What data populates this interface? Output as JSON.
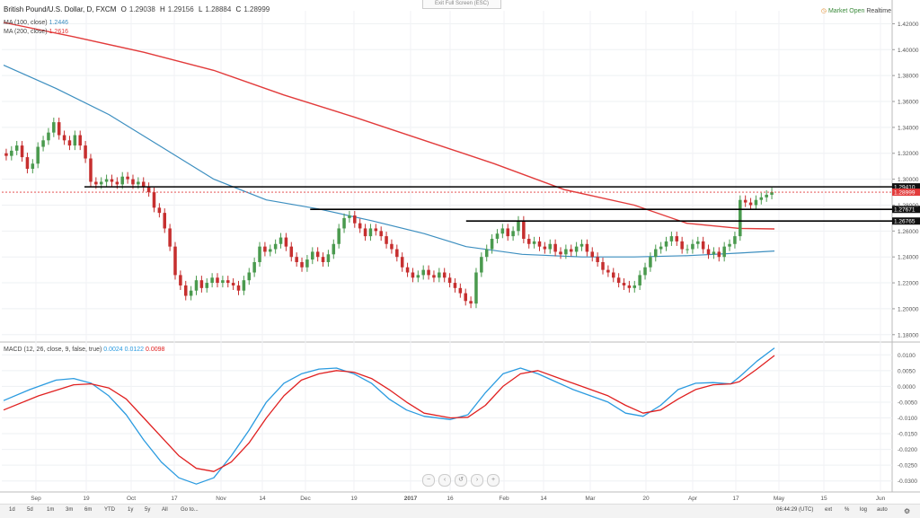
{
  "header": {
    "symbol": "British Pound/U.S. Dollar, D, FXCM",
    "ohlc": [
      {
        "k": "O",
        "v": "1.29038"
      },
      {
        "k": "H",
        "v": "1.29156"
      },
      {
        "k": "L",
        "v": "1.28884"
      },
      {
        "k": "C",
        "v": "1.28999"
      }
    ],
    "ma100_label": "MA (100, close)",
    "ma100_value": "1.2446",
    "ma200_label": "MA (200, close)",
    "ma200_value": "1.2616",
    "exit_fullscreen": "Exit Full Screen (ESC)",
    "market_status": "Market Open",
    "realtime": "Realtime"
  },
  "macd_header": {
    "label": "MACD (12, 26, close, 9, false, true)",
    "v1": "0.0024",
    "v2": "0.0122",
    "v3": "0.0098"
  },
  "colors": {
    "up": "#4a9a4e",
    "down": "#c62f2f",
    "ma100": "#3d8fc0",
    "ma200": "#e23b3b",
    "macd": "#2b9be0",
    "signal": "#e02020"
  },
  "toolbar": {
    "timeframes": [
      "1d",
      "5d",
      "1m",
      "3m",
      "6m",
      "YTD",
      "1y",
      "5y",
      "All",
      "Go to..."
    ],
    "clock": "06:44:29 (UTC)",
    "right": [
      "ext",
      "%",
      "log",
      "auto"
    ]
  },
  "chart_data": [
    {
      "type": "candlestick",
      "title": "British Pound/U.S. Dollar, D, FXCM",
      "ylim": [
        1.175,
        1.43
      ],
      "y_ticks": [
        "1.42000",
        "1.40000",
        "1.38000",
        "1.36000",
        "1.34000",
        "1.32000",
        "1.30000",
        "1.28000",
        "1.26000",
        "1.24000",
        "1.22000",
        "1.20000",
        "1.18000"
      ],
      "x_ticks": [
        "Sep",
        "19",
        "Oct",
        "17",
        "Nov",
        "14",
        "Dec",
        "19",
        "2017",
        "16",
        "Feb",
        "14",
        "Mar",
        "20",
        "Apr",
        "17",
        "May",
        "15",
        "Jun"
      ],
      "candles_close": [
        1.318,
        1.322,
        1.326,
        1.317,
        1.308,
        1.312,
        1.325,
        1.33,
        1.336,
        1.344,
        1.334,
        1.33,
        1.326,
        1.334,
        1.326,
        1.316,
        1.298,
        1.296,
        1.298,
        1.3,
        1.298,
        1.296,
        1.302,
        1.3,
        1.296,
        1.298,
        1.294,
        1.29,
        1.278,
        1.274,
        1.262,
        1.248,
        1.226,
        1.218,
        1.21,
        1.214,
        1.222,
        1.216,
        1.22,
        1.224,
        1.22,
        1.222,
        1.22,
        1.218,
        1.214,
        1.222,
        1.228,
        1.236,
        1.248,
        1.244,
        1.246,
        1.25,
        1.255,
        1.248,
        1.24,
        1.236,
        1.232,
        1.238,
        1.244,
        1.24,
        1.236,
        1.242,
        1.25,
        1.262,
        1.27,
        1.272,
        1.266,
        1.262,
        1.256,
        1.262,
        1.26,
        1.256,
        1.25,
        1.246,
        1.24,
        1.232,
        1.228,
        1.224,
        1.226,
        1.23,
        1.226,
        1.224,
        1.228,
        1.224,
        1.22,
        1.216,
        1.212,
        1.206,
        1.204,
        1.228,
        1.24,
        1.246,
        1.254,
        1.258,
        1.262,
        1.256,
        1.26,
        1.268,
        1.254,
        1.25,
        1.252,
        1.248,
        1.246,
        1.25,
        1.244,
        1.242,
        1.246,
        1.244,
        1.248,
        1.25,
        1.244,
        1.24,
        1.236,
        1.23,
        1.228,
        1.224,
        1.22,
        1.218,
        1.216,
        1.218,
        1.226,
        1.232,
        1.24,
        1.246,
        1.248,
        1.252,
        1.256,
        1.252,
        1.246,
        1.246,
        1.25,
        1.252,
        1.246,
        1.242,
        1.244,
        1.24,
        1.248,
        1.25,
        1.256,
        1.284,
        1.282,
        1.28,
        1.284,
        1.286,
        1.288,
        1.29
      ],
      "ma100": {
        "name": "MA (100, close)",
        "value": "1.2446",
        "points": [
          [
            0,
            1.388
          ],
          [
            30,
            1.37
          ],
          [
            60,
            1.35
          ],
          [
            90,
            1.325
          ],
          [
            120,
            1.3
          ],
          [
            150,
            1.284
          ],
          [
            180,
            1.277
          ],
          [
            210,
            1.268
          ],
          [
            240,
            1.258
          ],
          [
            264,
            1.248
          ],
          [
            296,
            1.242
          ],
          [
            330,
            1.24
          ],
          [
            360,
            1.24
          ],
          [
            390,
            1.241
          ],
          [
            420,
            1.243
          ],
          [
            440,
            1.2446
          ]
        ]
      },
      "ma200": {
        "name": "MA (200, close)",
        "value": "1.2616",
        "points": [
          [
            0,
            1.421
          ],
          [
            40,
            1.41
          ],
          [
            80,
            1.398
          ],
          [
            120,
            1.384
          ],
          [
            160,
            1.365
          ],
          [
            200,
            1.348
          ],
          [
            240,
            1.33
          ],
          [
            280,
            1.312
          ],
          [
            320,
            1.292
          ],
          [
            360,
            1.28
          ],
          [
            390,
            1.266
          ],
          [
            420,
            1.262
          ],
          [
            440,
            1.2616
          ]
        ]
      },
      "price_lines": [
        {
          "label": "1.29410",
          "value": 1.2941,
          "from": 48
        },
        {
          "label": "1.27671",
          "value": 1.2767,
          "from": 175
        },
        {
          "label": "1.26765",
          "value": 1.2677,
          "from": 264
        }
      ],
      "current_price": {
        "label": "1.28999",
        "value": 1.28999
      }
    },
    {
      "type": "line",
      "title": "MACD (12, 26, close, 9, false, true)",
      "ylim": [
        -0.0335,
        0.0135
      ],
      "y_ticks": [
        "0.0100",
        "0.0050",
        "0.0000",
        "-0.0050",
        "-0.0100",
        "-0.0150",
        "-0.0200",
        "-0.0250",
        "-0.0300"
      ],
      "series": [
        {
          "name": "MACD",
          "points": [
            [
              0,
              -0.0045
            ],
            [
              15,
              -0.001
            ],
            [
              30,
              0.002
            ],
            [
              40,
              0.0025
            ],
            [
              50,
              0.001
            ],
            [
              60,
              -0.003
            ],
            [
              70,
              -0.009
            ],
            [
              80,
              -0.017
            ],
            [
              90,
              -0.024
            ],
            [
              100,
              -0.029
            ],
            [
              110,
              -0.031
            ],
            [
              120,
              -0.029
            ],
            [
              130,
              -0.022
            ],
            [
              140,
              -0.014
            ],
            [
              150,
              -0.005
            ],
            [
              160,
              0.001
            ],
            [
              170,
              0.004
            ],
            [
              180,
              0.0055
            ],
            [
              190,
              0.0058
            ],
            [
              200,
              0.004
            ],
            [
              210,
              0.001
            ],
            [
              220,
              -0.004
            ],
            [
              230,
              -0.0075
            ],
            [
              240,
              -0.0095
            ],
            [
              255,
              -0.0105
            ],
            [
              265,
              -0.009
            ],
            [
              275,
              -0.002
            ],
            [
              285,
              0.004
            ],
            [
              295,
              0.0058
            ],
            [
              305,
              0.004
            ],
            [
              315,
              0.0015
            ],
            [
              325,
              -0.001
            ],
            [
              335,
              -0.003
            ],
            [
              345,
              -0.005
            ],
            [
              355,
              -0.0085
            ],
            [
              365,
              -0.0095
            ],
            [
              375,
              -0.006
            ],
            [
              385,
              -0.001
            ],
            [
              395,
              0.001
            ],
            [
              405,
              0.0012
            ],
            [
              415,
              0.0008
            ],
            [
              420,
              0.003
            ],
            [
              430,
              0.008
            ],
            [
              440,
              0.0122
            ]
          ]
        },
        {
          "name": "Signal",
          "points": [
            [
              0,
              -0.0075
            ],
            [
              20,
              -0.003
            ],
            [
              40,
              0.0005
            ],
            [
              50,
              0.0008
            ],
            [
              60,
              -0.0005
            ],
            [
              70,
              -0.004
            ],
            [
              80,
              -0.01
            ],
            [
              90,
              -0.016
            ],
            [
              100,
              -0.022
            ],
            [
              110,
              -0.026
            ],
            [
              120,
              -0.027
            ],
            [
              130,
              -0.024
            ],
            [
              140,
              -0.018
            ],
            [
              150,
              -0.01
            ],
            [
              160,
              -0.003
            ],
            [
              170,
              0.002
            ],
            [
              180,
              0.004
            ],
            [
              190,
              0.005
            ],
            [
              200,
              0.0045
            ],
            [
              210,
              0.0025
            ],
            [
              220,
              -0.001
            ],
            [
              230,
              -0.005
            ],
            [
              240,
              -0.0085
            ],
            [
              255,
              -0.01
            ],
            [
              265,
              -0.0098
            ],
            [
              275,
              -0.006
            ],
            [
              285,
              0.0
            ],
            [
              295,
              0.004
            ],
            [
              305,
              0.005
            ],
            [
              315,
              0.003
            ],
            [
              325,
              0.001
            ],
            [
              335,
              -0.001
            ],
            [
              345,
              -0.003
            ],
            [
              355,
              -0.006
            ],
            [
              365,
              -0.0085
            ],
            [
              375,
              -0.0075
            ],
            [
              385,
              -0.004
            ],
            [
              395,
              -0.001
            ],
            [
              405,
              0.0005
            ],
            [
              415,
              0.0008
            ],
            [
              420,
              0.0015
            ],
            [
              430,
              0.0055
            ],
            [
              440,
              0.0098
            ]
          ]
        }
      ]
    }
  ]
}
